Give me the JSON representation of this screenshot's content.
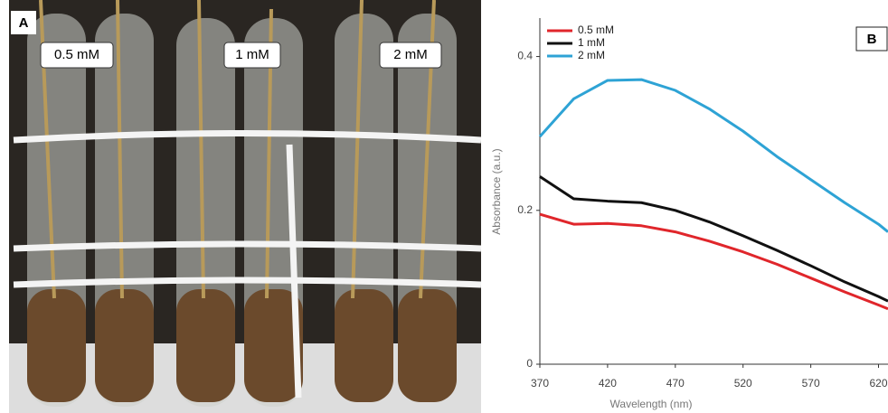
{
  "photo": {
    "panel_label": "A",
    "labels": [
      "0.5 mM",
      "1 mM",
      "2 mM"
    ]
  },
  "chart_data": {
    "type": "line",
    "panel_label": "B",
    "x_label": "Wavelength (nm)",
    "y_label": "Absorbance (a.u.)",
    "x": [
      370,
      395,
      420,
      445,
      470,
      495,
      520,
      545,
      570,
      595,
      620,
      627
    ],
    "series": [
      {
        "name": "0.5 mM",
        "color": "#e0262b",
        "values": [
          0.195,
          0.182,
          0.183,
          0.18,
          0.172,
          0.16,
          0.146,
          0.13,
          0.112,
          0.094,
          0.077,
          0.072
        ]
      },
      {
        "name": "1 mM",
        "color": "#111111",
        "values": [
          0.244,
          0.215,
          0.212,
          0.21,
          0.2,
          0.185,
          0.167,
          0.148,
          0.128,
          0.107,
          0.088,
          0.082
        ]
      },
      {
        "name": "2 mM",
        "color": "#2ea3d5",
        "values": [
          0.296,
          0.345,
          0.369,
          0.37,
          0.356,
          0.332,
          0.303,
          0.27,
          0.24,
          0.21,
          0.182,
          0.172
        ]
      }
    ],
    "xlim": [
      370,
      627
    ],
    "ylim": [
      0,
      0.45
    ],
    "xticks": [
      370,
      420,
      470,
      520,
      570,
      620
    ],
    "yticks": [
      0,
      0.2,
      0.4
    ],
    "legend": "top-left"
  }
}
